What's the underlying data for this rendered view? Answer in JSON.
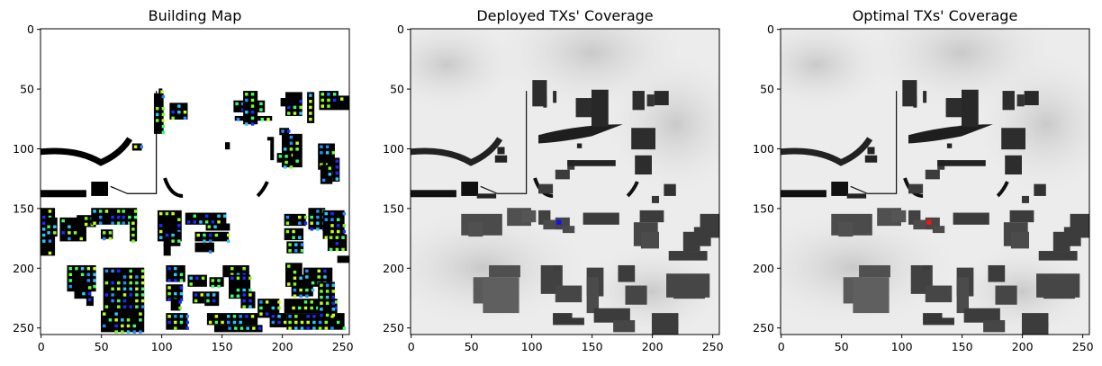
{
  "chart_data": [
    {
      "type": "heatmap",
      "title": "Building Map",
      "xlabel": "",
      "ylabel": "",
      "xlim": [
        0,
        256
      ],
      "ylim": [
        256,
        0
      ],
      "xticks": [
        "0",
        "50",
        "100",
        "150",
        "200",
        "250"
      ],
      "yticks": [
        "0",
        "50",
        "100",
        "150",
        "200",
        "250"
      ],
      "colormap": "jet",
      "background": "#ffffff",
      "building_color": "#000000",
      "marker_palette": [
        "#1a2cff",
        "#1e90ff",
        "#29c8ff",
        "#3cff6a",
        "#7cff1e",
        "#c8ff1a"
      ]
    },
    {
      "type": "heatmap",
      "title": "Deployed TXs' Coverage",
      "xlabel": "",
      "ylabel": "",
      "xlim": [
        0,
        256
      ],
      "ylim": [
        256,
        0
      ],
      "xticks": [
        "0",
        "50",
        "100",
        "150",
        "200",
        "250"
      ],
      "yticks": [
        "0",
        "50",
        "100",
        "150",
        "200",
        "250"
      ],
      "colormap": "gray",
      "tx": {
        "x": 123,
        "y": 162,
        "color": "#1010ff"
      }
    },
    {
      "type": "heatmap",
      "title": "Optimal TXs' Coverage",
      "xlabel": "",
      "ylabel": "",
      "xlim": [
        0,
        256
      ],
      "ylim": [
        256,
        0
      ],
      "xticks": [
        "0",
        "50",
        "100",
        "150",
        "200",
        "250"
      ],
      "yticks": [
        "0",
        "50",
        "100",
        "150",
        "200",
        "250"
      ],
      "colormap": "gray",
      "tx": {
        "x": 123,
        "y": 162,
        "color": "#ff1010"
      }
    }
  ]
}
